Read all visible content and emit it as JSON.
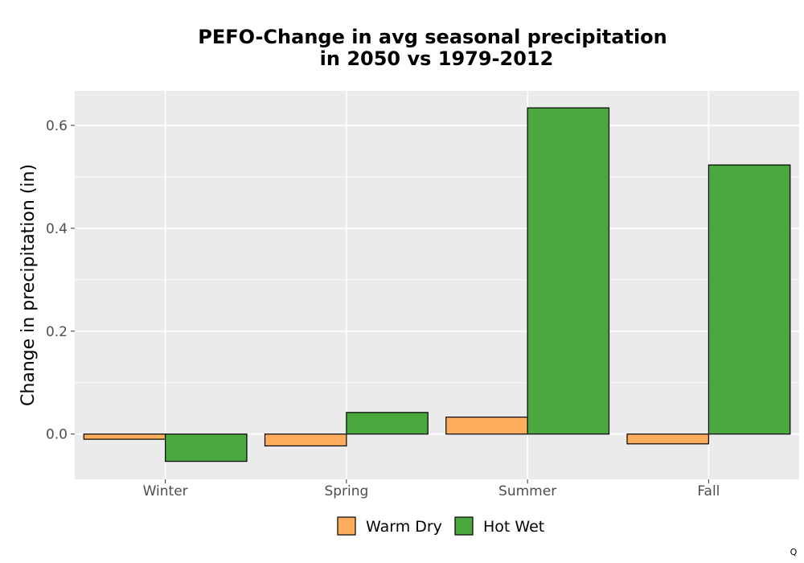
{
  "chart_data": {
    "type": "bar",
    "title_lines": [
      "PEFO-Change in avg seasonal precipitation",
      "in 2050 vs 1979-2012"
    ],
    "xlabel": "",
    "ylabel": "Change in precipitation (in)",
    "categories": [
      "Winter",
      "Spring",
      "Summer",
      "Fall"
    ],
    "series": [
      {
        "name": "Warm Dry",
        "color": "#fdad5c",
        "values": [
          -0.01,
          -0.023,
          0.033,
          -0.019
        ]
      },
      {
        "name": "Hot Wet",
        "color": "#4aa83f",
        "values": [
          -0.053,
          0.042,
          0.634,
          0.523
        ]
      }
    ],
    "ylim": [
      -0.088,
      0.667
    ],
    "yticks": [
      0.0,
      0.2,
      0.4,
      0.6
    ],
    "ytick_labels": [
      "0.0",
      "0.2",
      "0.4",
      "0.6"
    ],
    "grid": true,
    "legend_position": "bottom"
  },
  "corner_mark": "Q",
  "colors": {
    "panel_background": "#ebebeb",
    "grid": "#ffffff",
    "bar_outline": "#000000"
  }
}
